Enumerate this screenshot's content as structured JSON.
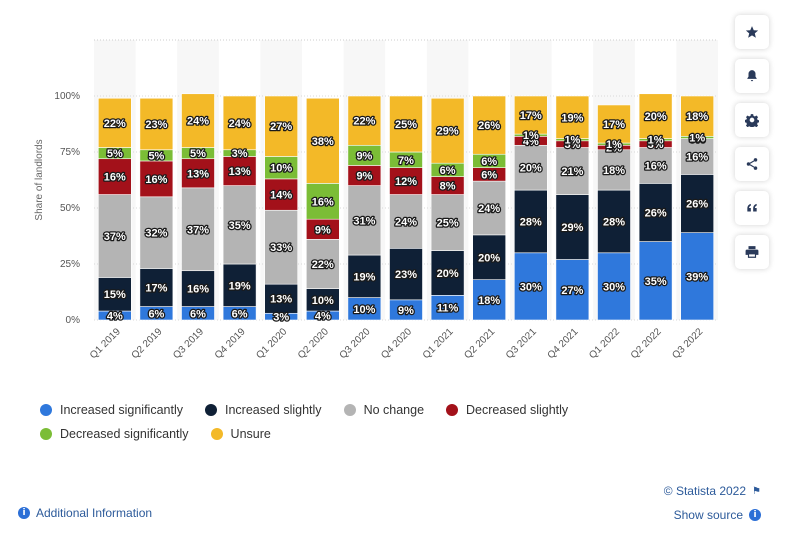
{
  "chart_data": {
    "type": "bar",
    "stacked": true,
    "ylabel": "Share of landlords",
    "ylim": [
      0,
      100
    ],
    "y_ticks": [
      "0%",
      "25%",
      "50%",
      "75%",
      "100%"
    ],
    "y_tick_values": [
      0,
      25,
      50,
      75,
      100
    ],
    "categories": [
      "Q1 2019",
      "Q2 2019",
      "Q3 2019",
      "Q4 2019",
      "Q1 2020",
      "Q2 2020",
      "Q3 2020",
      "Q4 2020",
      "Q1 2021",
      "Q2 2021",
      "Q3 2021",
      "Q4 2021",
      "Q1 2022",
      "Q2 2022",
      "Q3 2022"
    ],
    "series": [
      {
        "name": "Increased significantly",
        "color": "#2f78dc",
        "values": [
          4,
          6,
          6,
          6,
          3,
          4,
          10,
          9,
          11,
          18,
          30,
          27,
          30,
          35,
          39
        ]
      },
      {
        "name": "Increased slightly",
        "color": "#0f2036",
        "values": [
          15,
          17,
          16,
          19,
          13,
          10,
          19,
          23,
          20,
          20,
          28,
          29,
          28,
          26,
          26
        ]
      },
      {
        "name": "No change",
        "color": "#b4b4b4",
        "values": [
          37,
          32,
          37,
          35,
          33,
          22,
          31,
          24,
          25,
          24,
          20,
          21,
          18,
          16,
          16
        ]
      },
      {
        "name": "Decreased slightly",
        "color": "#a3111a",
        "values": [
          16,
          16,
          13,
          13,
          14,
          9,
          9,
          12,
          8,
          6,
          4,
          3,
          2,
          3,
          0
        ]
      },
      {
        "name": "Decreased significantly",
        "color": "#7bbd36",
        "values": [
          5,
          5,
          5,
          3,
          10,
          16,
          9,
          7,
          6,
          6,
          1,
          1,
          1,
          1,
          1
        ]
      },
      {
        "name": "Unsure",
        "color": "#f3b928",
        "values": [
          22,
          23,
          24,
          24,
          27,
          38,
          22,
          25,
          29,
          26,
          17,
          19,
          17,
          20,
          18
        ]
      }
    ],
    "legend_position": "bottom",
    "grid": true
  },
  "legend": {
    "row1": [
      "Increased significantly",
      "Increased slightly",
      "No change",
      "Decreased slightly"
    ],
    "row2": [
      "Decreased significantly",
      "Unsure"
    ]
  },
  "sidebar": {
    "icons": [
      "star-icon",
      "bell-icon",
      "gear-icon",
      "share-icon",
      "quote-icon",
      "print-icon"
    ]
  },
  "footer": {
    "credit": "© Statista 2022",
    "show_source": "Show source",
    "additional_info": "Additional Information"
  }
}
